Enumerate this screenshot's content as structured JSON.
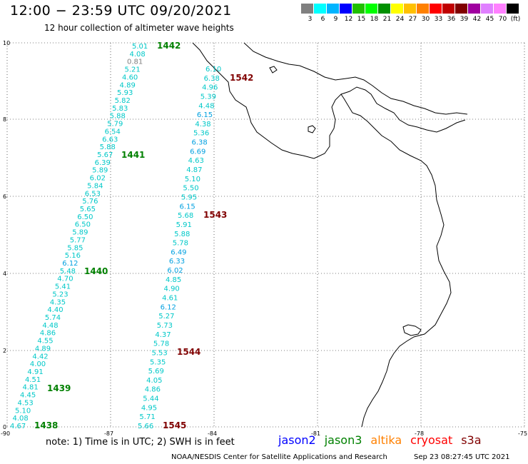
{
  "title": "12:00 − 23:59 UTC 09/20/2021",
  "subtitle": "12 hour collection of altimeter wave heights",
  "color_scale": {
    "labels": [
      "3",
      "6",
      "9",
      "12",
      "15",
      "18",
      "21",
      "24",
      "27",
      "30",
      "33",
      "36",
      "39",
      "42",
      "45",
      "70",
      "(ft)"
    ],
    "colors": [
      "#808080",
      "#00ffff",
      "#00b4ff",
      "#0000ff",
      "#20c000",
      "#00ff00",
      "#009000",
      "#ffff00",
      "#ffc000",
      "#ff8000",
      "#ff0000",
      "#c00000",
      "#800000",
      "#a000a0",
      "#e080ff",
      "#ff80ff",
      "#000000"
    ]
  },
  "axes": {
    "y_ticks": [
      "10",
      "8",
      "6",
      "4",
      "2",
      "0"
    ],
    "x_ticks": [
      "-90",
      "-87",
      "-84",
      "-81",
      "-78",
      "-75"
    ]
  },
  "pass_labels": [
    {
      "text": "1442",
      "color": "#008000"
    },
    {
      "text": "1441",
      "color": "#008000"
    },
    {
      "text": "1440",
      "color": "#008000"
    },
    {
      "text": "1439",
      "color": "#008000"
    },
    {
      "text": "1438",
      "color": "#008000"
    },
    {
      "text": "1542",
      "color": "#800000"
    },
    {
      "text": "1543",
      "color": "#800000"
    },
    {
      "text": "1544",
      "color": "#800000"
    },
    {
      "text": "1545",
      "color": "#800000"
    }
  ],
  "track_a": [
    "5.01",
    "4.08",
    "0.81",
    "5.21",
    "4.60",
    "4.89",
    "5.93",
    "5.82",
    "5.83",
    "5.88",
    "5.79",
    "6.54",
    "6.63",
    "5.88",
    "5.67",
    "6.39",
    "5.89",
    "6.02",
    "5.84",
    "6.53",
    "5.76",
    "5.65",
    "6.50",
    "6.50",
    "5.89",
    "5.77",
    "5.85",
    "5.16",
    "6.12",
    "5.48",
    "4.70",
    "5.41",
    "5.23",
    "4.35",
    "4.40",
    "5.74",
    "4.48",
    "4.86",
    "4.55",
    "4.89",
    "4.42",
    "4.00",
    "4.91",
    "4.51",
    "4.81",
    "4.45",
    "4.53",
    "5.10",
    "4.08",
    "4.67"
  ],
  "track_a_colors": [
    "#00c8c8",
    "#00c8c8",
    "#808080",
    "#00c8c8",
    "#00c8c8",
    "#00c8c8",
    "#00c8c8",
    "#00c8c8",
    "#00c8c8",
    "#00c8c8",
    "#00c8c8",
    "#00c8c8",
    "#00c8c8",
    "#00c8c8",
    "#00c8c8",
    "#00c8c8",
    "#00c8c8",
    "#00c8c8",
    "#00c8c8",
    "#00c8c8",
    "#00c8c8",
    "#00c8c8",
    "#00c8c8",
    "#00c8c8",
    "#00c8c8",
    "#00c8c8",
    "#00c8c8",
    "#00c8c8",
    "#00a0e0",
    "#00c8c8",
    "#00c8c8",
    "#00c8c8",
    "#00c8c8",
    "#00c8c8",
    "#00c8c8",
    "#00c8c8",
    "#00c8c8",
    "#00c8c8",
    "#00c8c8",
    "#00c8c8",
    "#00c8c8",
    "#00c8c8",
    "#00c8c8",
    "#00c8c8",
    "#00c8c8",
    "#00c8c8",
    "#00c8c8",
    "#00c8c8",
    "#00c8c8",
    "#00c8c8"
  ],
  "track_b": [
    "6.10",
    "6.38",
    "4.96",
    "5.39",
    "4.48",
    "6.15",
    "4.38",
    "5.36",
    "6.38",
    "6.69",
    "4.63",
    "4.87",
    "5.10",
    "5.50",
    "5.95",
    "6.15",
    "5.68",
    "5.91",
    "5.88",
    "5.78",
    "6.49",
    "6.33",
    "6.02",
    "4.85",
    "4.90",
    "4.61",
    "6.12",
    "5.27",
    "5.73",
    "4.37",
    "5.78",
    "5.53",
    "5.35",
    "5.69",
    "4.05",
    "4.86",
    "5.44",
    "4.95",
    "5.71",
    "5.66"
  ],
  "track_b_colors": [
    "#00c8c8",
    "#00c8c8",
    "#00c8c8",
    "#00c8c8",
    "#00c8c8",
    "#00a0e0",
    "#00c8c8",
    "#00c8c8",
    "#00a0e0",
    "#00a0e0",
    "#00c8c8",
    "#00c8c8",
    "#00c8c8",
    "#00c8c8",
    "#00c8c8",
    "#00a0e0",
    "#00c8c8",
    "#00c8c8",
    "#00c8c8",
    "#00c8c8",
    "#00a0e0",
    "#00a0e0",
    "#00a0e0",
    "#00c8c8",
    "#00c8c8",
    "#00c8c8",
    "#00a0e0",
    "#00c8c8",
    "#00c8c8",
    "#00c8c8",
    "#00c8c8",
    "#00c8c8",
    "#00c8c8",
    "#00c8c8",
    "#00c8c8",
    "#00c8c8",
    "#00c8c8",
    "#00c8c8",
    "#00c8c8",
    "#00c8c8"
  ],
  "note": "note:  1) Time is in UTC;  2) SWH is in feet",
  "legend": [
    {
      "text": "jason2",
      "color": "#0000ff"
    },
    {
      "text": "jason3",
      "color": "#008000"
    },
    {
      "text": "altika",
      "color": "#ff8000"
    },
    {
      "text": "cryosat",
      "color": "#ff0000"
    },
    {
      "text": "s3a",
      "color": "#800000"
    }
  ],
  "credit": "NOAA/NESDIS Center for Satellite Applications and Research",
  "stamp": "Sep 23 08:27:45 UTC 2021"
}
